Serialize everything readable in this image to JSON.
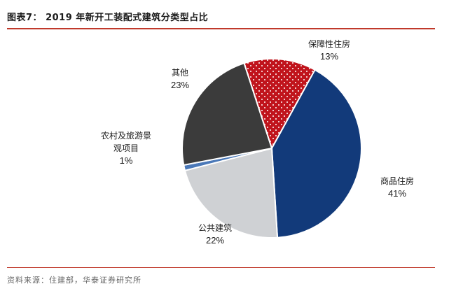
{
  "title": "图表7：  2019 年新开工装配式建筑分类型占比",
  "source": "资料来源：住建部，华泰证券研究所",
  "colors": {
    "accent_rule": "#c0392b"
  },
  "chart_data": {
    "type": "pie",
    "title": "2019 年新开工装配式建筑分类型占比",
    "slices": [
      {
        "label": "保障性住房",
        "value": 13,
        "value_label": "13%",
        "color": "#c0141c",
        "pattern": "white-dots"
      },
      {
        "label": "商品住房",
        "value": 41,
        "value_label": "41%",
        "color": "#123a7a"
      },
      {
        "label": "公共建筑",
        "value": 22,
        "value_label": "22%",
        "color": "#cfd1d4"
      },
      {
        "label": "农村及旅游景观项目",
        "label_lines": [
          "农村及旅游景",
          "观项目"
        ],
        "value": 1,
        "value_label": "1%",
        "color": "#4a78b8"
      },
      {
        "label": "其他",
        "value": 23,
        "value_label": "23%",
        "color": "#3b3b3b"
      }
    ]
  }
}
